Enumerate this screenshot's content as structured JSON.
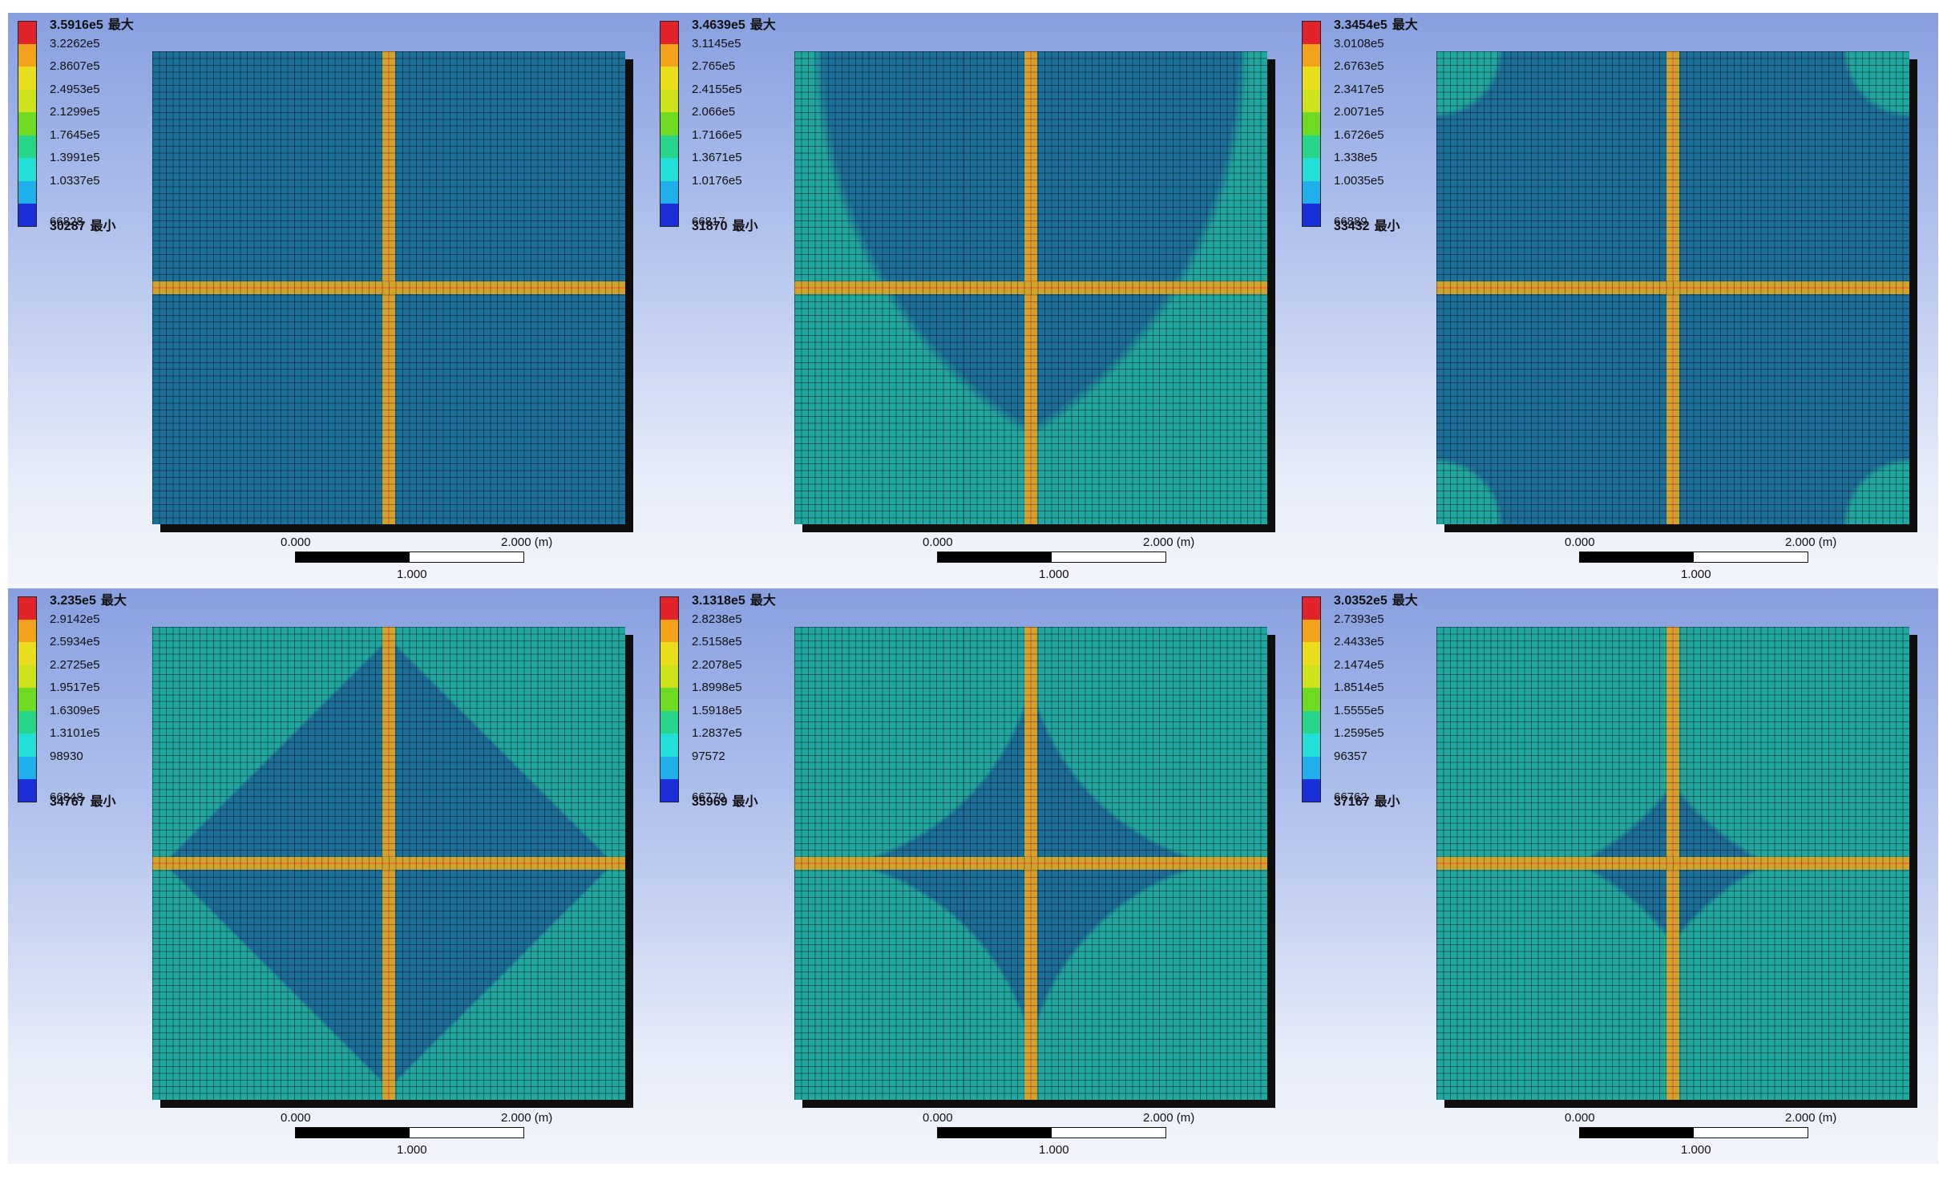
{
  "legend_colors": [
    "#e3232b",
    "#f2a21b",
    "#e8de1b",
    "#cde21b",
    "#6fda22",
    "#26d48a",
    "#22e0d8",
    "#1fb0ec",
    "#1b2fd8"
  ],
  "mesh": {
    "base_color": "#1c6f99",
    "high_color": "#22a6a0",
    "band_color": "#d2a32c"
  },
  "panels": [
    {
      "legend": {
        "max_value": "3.5916e5",
        "max_tag": "最大",
        "levels": [
          "3.2262e5",
          "2.8607e5",
          "2.4953e5",
          "2.1299e5",
          "1.7645e5",
          "1.3991e5",
          "1.0337e5",
          "66828"
        ],
        "min_value": "30287",
        "min_tag": "最小"
      },
      "scale": {
        "start": "0.000",
        "end": "2.000 (m)",
        "mid": "1.000"
      },
      "pattern": 0
    },
    {
      "legend": {
        "max_value": "3.4639e5",
        "max_tag": "最大",
        "levels": [
          "3.1145e5",
          "2.765e5",
          "2.4155e5",
          "2.066e5",
          "1.7166e5",
          "1.3671e5",
          "1.0176e5",
          "66817"
        ],
        "min_value": "31870",
        "min_tag": "最小"
      },
      "scale": {
        "start": "0.000",
        "end": "2.000 (m)",
        "mid": "1.000"
      },
      "pattern": 1
    },
    {
      "legend": {
        "max_value": "3.3454e5",
        "max_tag": "最大",
        "levels": [
          "3.0108e5",
          "2.6763e5",
          "2.3417e5",
          "2.0071e5",
          "1.6726e5",
          "1.338e5",
          "1.0035e5",
          "66889"
        ],
        "min_value": "33432",
        "min_tag": "最小"
      },
      "scale": {
        "start": "0.000",
        "end": "2.000 (m)",
        "mid": "1.000"
      },
      "pattern": 2
    },
    {
      "legend": {
        "max_value": "3.235e5",
        "max_tag": "最大",
        "levels": [
          "2.9142e5",
          "2.5934e5",
          "2.2725e5",
          "1.9517e5",
          "1.6309e5",
          "1.3101e5",
          "98930",
          "66848"
        ],
        "min_value": "34767",
        "min_tag": "最小"
      },
      "scale": {
        "start": "0.000",
        "end": "2.000 (m)",
        "mid": "1.000"
      },
      "pattern": 3
    },
    {
      "legend": {
        "max_value": "3.1318e5",
        "max_tag": "最大",
        "levels": [
          "2.8238e5",
          "2.5158e5",
          "2.2078e5",
          "1.8998e5",
          "1.5918e5",
          "1.2837e5",
          "97572",
          "66770"
        ],
        "min_value": "35969",
        "min_tag": "最小"
      },
      "scale": {
        "start": "0.000",
        "end": "2.000 (m)",
        "mid": "1.000"
      },
      "pattern": 4
    },
    {
      "legend": {
        "max_value": "3.0352e5",
        "max_tag": "最大",
        "levels": [
          "2.7393e5",
          "2.4433e5",
          "2.1474e5",
          "1.8514e5",
          "1.5555e5",
          "1.2595e5",
          "96357",
          "66762"
        ],
        "min_value": "37167",
        "min_tag": "最小"
      },
      "scale": {
        "start": "0.000",
        "end": "2.000 (m)",
        "mid": "1.000"
      },
      "pattern": 5
    }
  ]
}
